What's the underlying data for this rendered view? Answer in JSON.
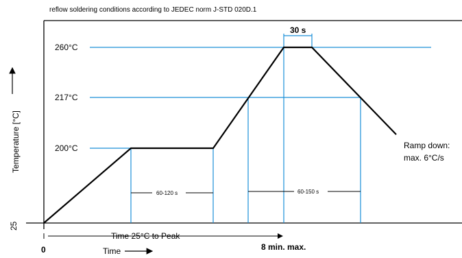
{
  "caption": "reflow soldering conditions according to JEDEC norm J-STD 020D.1",
  "y_axis_label": "Temperature [°C]",
  "x_axis_label": "Time",
  "temps": {
    "t260": "260°C",
    "t217": "217°C",
    "t200": "200°C",
    "t25": "25"
  },
  "origin_label": "0",
  "peak_duration": "30 s",
  "soak_interval": "60-120 s",
  "above_liquidus_interval": "60-150 s",
  "time_to_peak": "Time 25°C to Peak",
  "max_time": "8 min. max.",
  "ramp_down": [
    "Ramp down:",
    "max. 6°C/s"
  ],
  "colors": {
    "profile": "#000000",
    "guides": "#1a8fd8",
    "frame": "#000000"
  }
}
